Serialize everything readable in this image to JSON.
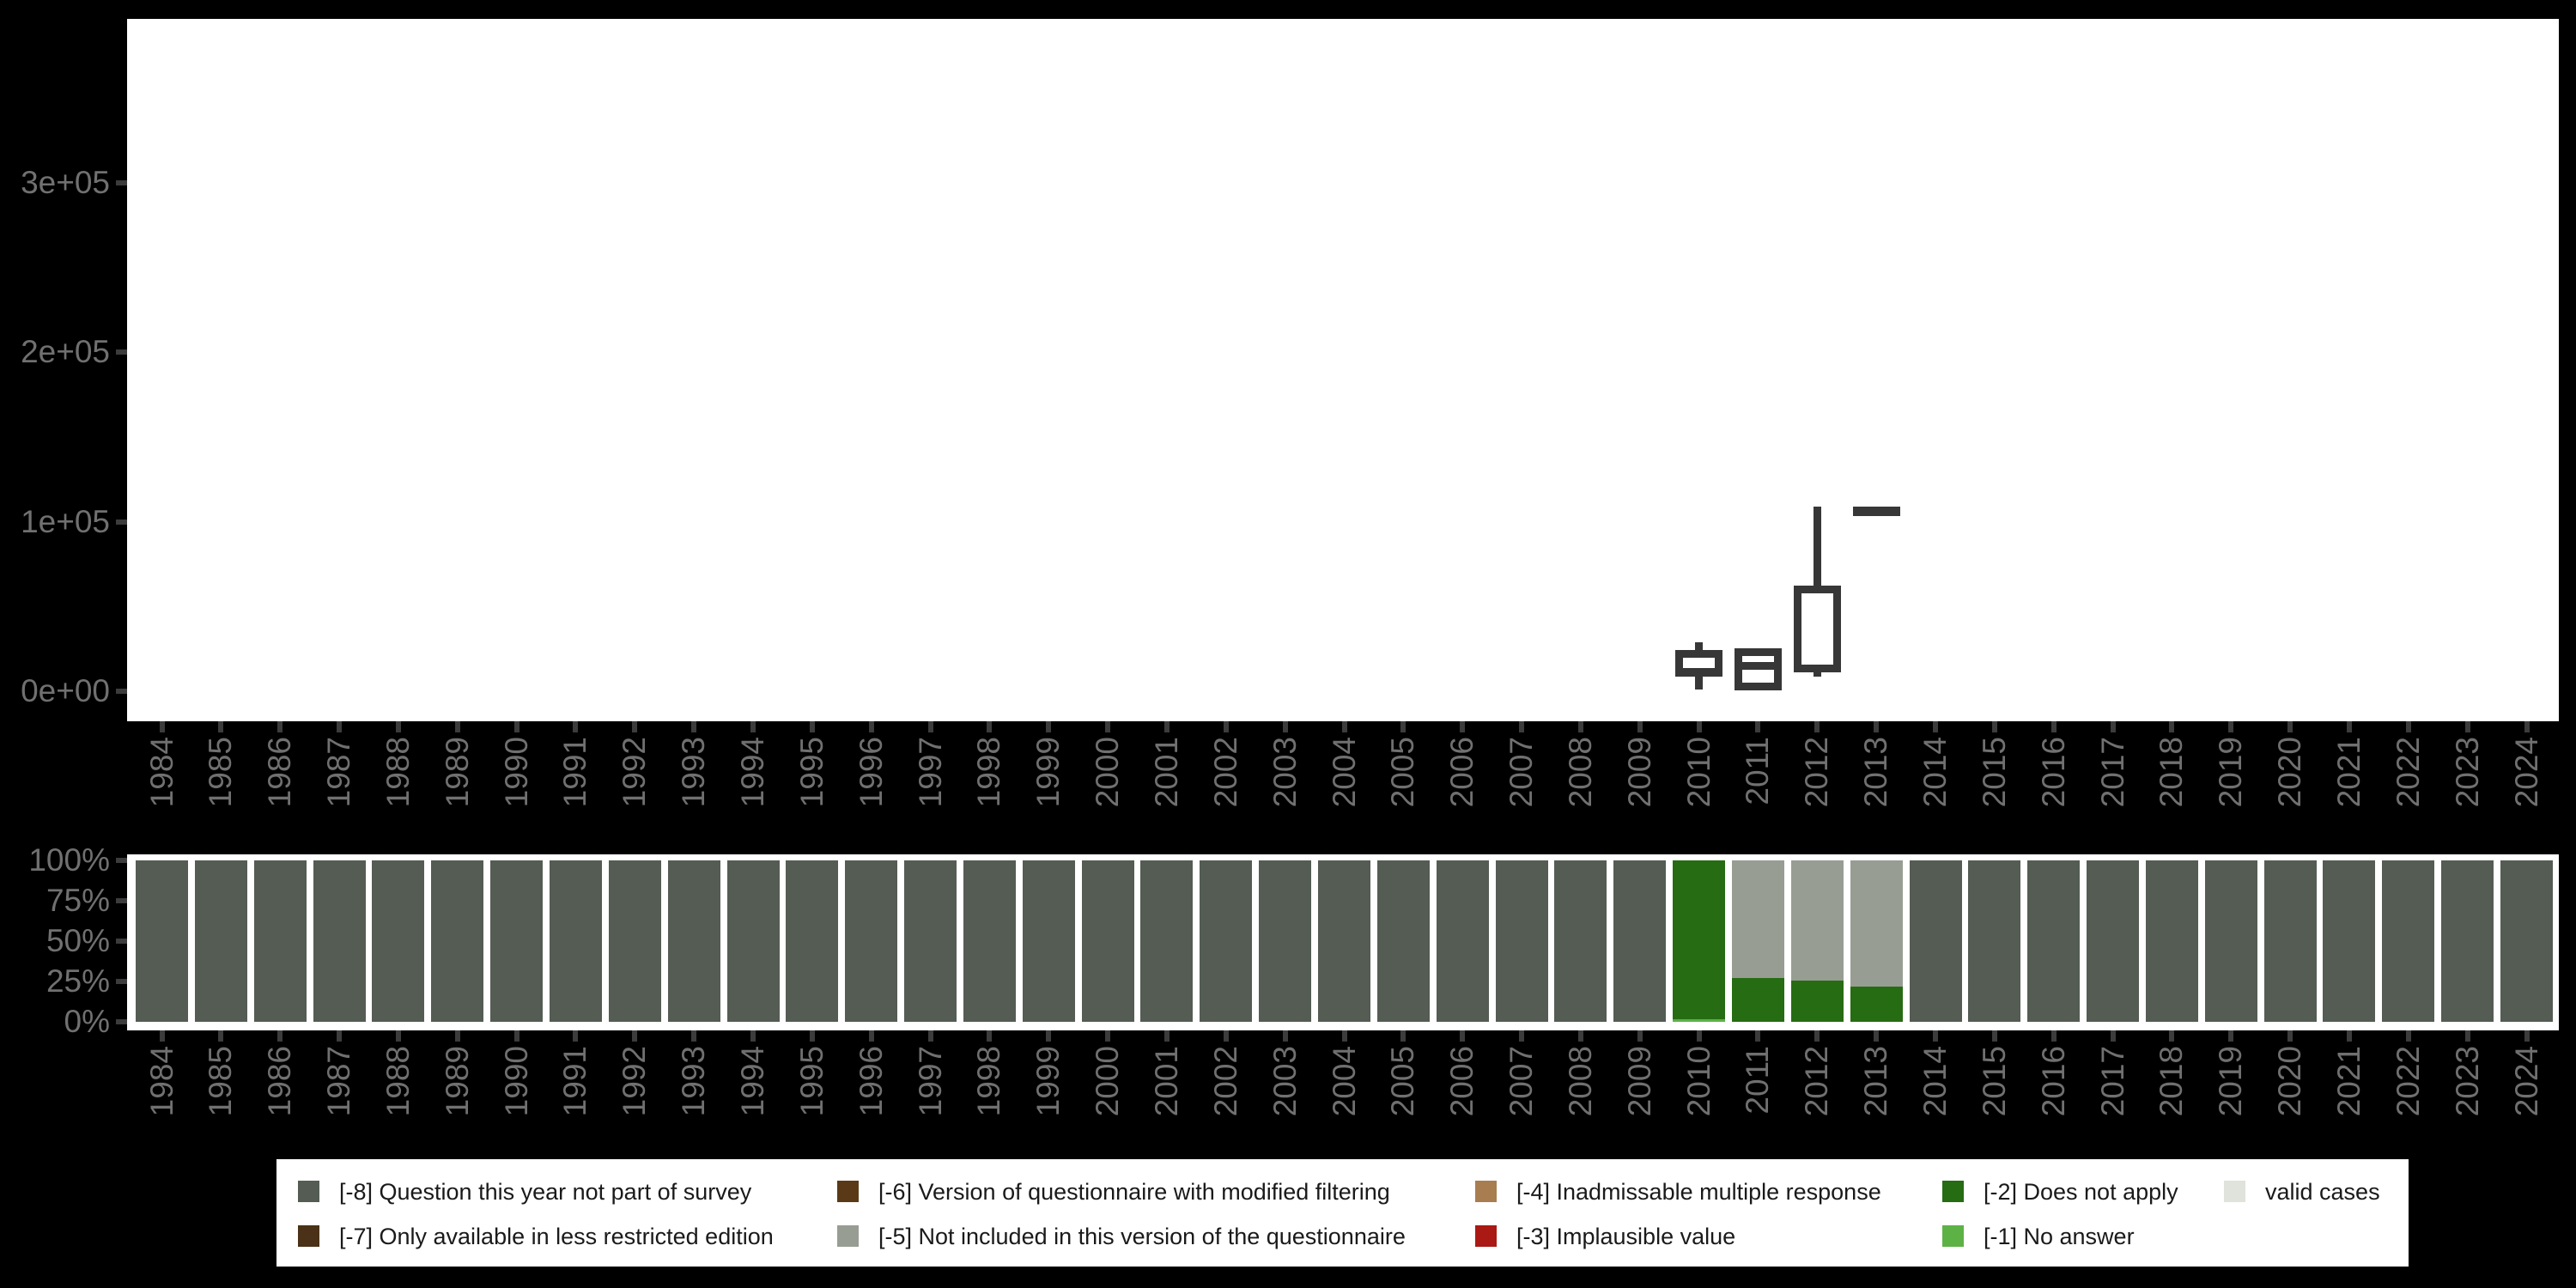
{
  "page": {
    "background": "#000000"
  },
  "axis": {
    "text_color": "#707070",
    "tick_color": "#3C3C3C"
  },
  "colors": {
    "-8": "#545C54",
    "-7": "#4A3117",
    "-6": "#5A3A16",
    "-5": "#989D94",
    "-4": "#A87D50",
    "-3": "#AA1913",
    "-2": "#266C12",
    "-1": "#5DB246",
    "valid": "#DFE3DC",
    "box_stroke": "#373737",
    "panel_bg": "#FFFFFF"
  },
  "years": [
    "1984",
    "1985",
    "1986",
    "1987",
    "1988",
    "1989",
    "1990",
    "1991",
    "1992",
    "1993",
    "1994",
    "1995",
    "1996",
    "1997",
    "1998",
    "1999",
    "2000",
    "2001",
    "2002",
    "2003",
    "2004",
    "2005",
    "2006",
    "2007",
    "2008",
    "2009",
    "2010",
    "2011",
    "2012",
    "2013",
    "2014",
    "2015",
    "2016",
    "2017",
    "2018",
    "2019",
    "2020",
    "2021",
    "2022",
    "2023",
    "2024"
  ],
  "chart_data": [
    {
      "type": "boxplot",
      "panel": "top",
      "x": "years 1984-2024 (see years array)",
      "ylim": [
        0,
        397000
      ],
      "grid": false,
      "yticks": [
        {
          "v": 0,
          "label": "0e+00"
        },
        {
          "v": 100000,
          "label": "1e+05"
        },
        {
          "v": 200000,
          "label": "2e+05"
        },
        {
          "v": 300000,
          "label": "3e+05"
        }
      ],
      "boxes": [
        {
          "year": "2010",
          "low": 1000,
          "q1": 8500,
          "median": 11200,
          "q3": 24500,
          "high": 29000
        },
        {
          "year": "2011",
          "low": 0,
          "q1": 500,
          "median": 14800,
          "q3": 25500,
          "high": 25500
        },
        {
          "year": "2012",
          "low": 8600,
          "q1": 11000,
          "median": 13200,
          "q3": 62500,
          "high": 109000
        },
        {
          "year": "2013",
          "low": 106500,
          "q1": 106500,
          "median": 106500,
          "q3": 106500,
          "high": 106500
        }
      ]
    },
    {
      "type": "bar",
      "panel": "bottom",
      "stacked": "percent",
      "x": "years 1984-2024 (see years array)",
      "grid": false,
      "yticks": [
        {
          "v": 0,
          "label": "0%"
        },
        {
          "v": 25,
          "label": "25%"
        },
        {
          "v": 50,
          "label": "50%"
        },
        {
          "v": 75,
          "label": "75%"
        },
        {
          "v": 100,
          "label": "100%"
        }
      ],
      "default_stack": [
        {
          "key": "-8",
          "pct": 100
        }
      ],
      "overrides": {
        "2010": [
          {
            "key": "-1",
            "pct": 1.6
          },
          {
            "key": "-2",
            "pct": 98.4
          }
        ],
        "2011": [
          {
            "key": "-2",
            "pct": 27
          },
          {
            "key": "-5",
            "pct": 73
          }
        ],
        "2012": [
          {
            "key": "-2",
            "pct": 25.5
          },
          {
            "key": "-5",
            "pct": 74.5
          }
        ],
        "2013": [
          {
            "key": "-2",
            "pct": 21.8
          },
          {
            "key": "-5",
            "pct": 78.2
          }
        ]
      }
    }
  ],
  "legend": {
    "background": "#FFFFFF",
    "text_color": "#1A1A1A",
    "items": [
      {
        "key": "-8",
        "label": "[-8] Question this year not part of survey"
      },
      {
        "key": "-7",
        "label": "[-7] Only available in less restricted edition"
      },
      {
        "key": "-6",
        "label": "[-6] Version of questionnaire with modified filtering"
      },
      {
        "key": "-5",
        "label": "[-5] Not included in this version of the questionnaire"
      },
      {
        "key": "-4",
        "label": "[-4] Inadmissable multiple response"
      },
      {
        "key": "-3",
        "label": "[-3] Implausible value"
      },
      {
        "key": "-2",
        "label": "[-2] Does not apply"
      },
      {
        "key": "-1",
        "label": "[-1] No answer"
      },
      {
        "key": "valid",
        "label": "valid cases"
      }
    ]
  }
}
